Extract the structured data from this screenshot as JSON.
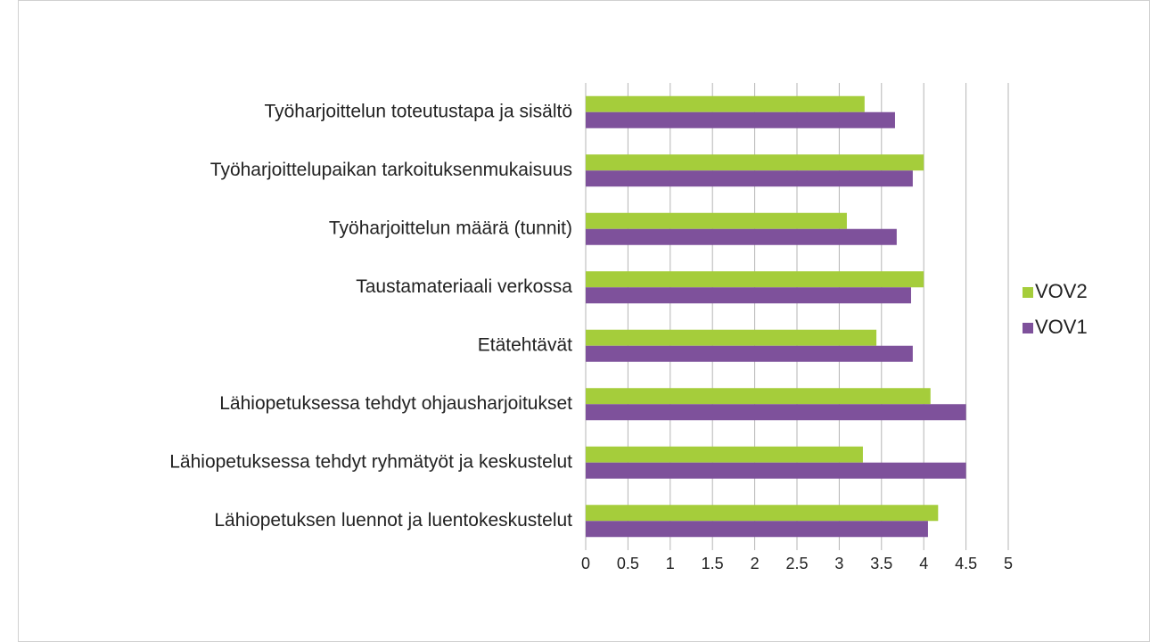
{
  "chart_data": {
    "type": "bar",
    "orientation": "horizontal",
    "categories": [
      "Työharjoittelun toteutustapa ja sisältö",
      "Työharjoittelupaikan tarkoituksenmukaisuus",
      "Työharjoittelun määrä (tunnit)",
      "Taustamateriaali verkossa",
      "Etätehtävät",
      "Lähiopetuksessa tehdyt ohjausharjoitukset",
      "Lähiopetuksessa tehdyt ryhmätyöt ja keskustelut",
      "Lähiopetuksen luennot ja luentokeskustelut"
    ],
    "series": [
      {
        "name": "VOV2",
        "color": "#a5cd3b",
        "values": [
          3.3,
          4.0,
          3.09,
          4.0,
          3.44,
          4.08,
          3.28,
          4.17
        ]
      },
      {
        "name": "VOV1",
        "color": "#7e519b",
        "values": [
          3.66,
          3.87,
          3.68,
          3.85,
          3.87,
          4.5,
          4.5,
          4.05
        ]
      }
    ],
    "xlim": [
      0,
      5
    ],
    "xticks": [
      0,
      0.5,
      1,
      1.5,
      2,
      2.5,
      3,
      3.5,
      4,
      4.5,
      5
    ],
    "grid": true,
    "legend": "right"
  }
}
